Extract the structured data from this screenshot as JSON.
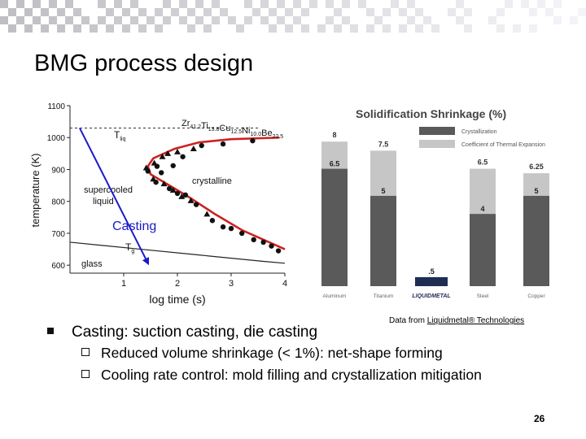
{
  "slide": {
    "title": "BMG process design",
    "page_number": "26",
    "credit_prefix": "Data from ",
    "credit_link": "Liquidmetal® Technologies"
  },
  "bullets": [
    {
      "text": "Casting: suction casting, die casting",
      "sub": [
        "Reduced volume shrinkage (< 1%): net-shape forming",
        "Cooling rate control: mold filling and crystallization mitigation"
      ]
    }
  ],
  "colors": {
    "bar_dark": "#5a5a5a",
    "bar_light": "#c6c6c6",
    "liquidmetal": "#1f2d52",
    "red_curve": "#cc2222",
    "blue_arrow": "#1a1acc"
  },
  "chart_data": [
    {
      "type": "scatter",
      "title": "",
      "xlabel": "log time (s)",
      "ylabel": "temperature (K)",
      "xlim": [
        0,
        4
      ],
      "ylim": [
        575,
        1100
      ],
      "x_ticks": [
        "1",
        "2",
        "3",
        "4"
      ],
      "y_ticks": [
        "600",
        "700",
        "800",
        "900",
        "1000",
        "1100"
      ],
      "alloy_label": "Zr41.2Ti13.8Cu12.5Ni10.0Be22.5",
      "alloy_parts": [
        {
          "t": "Zr",
          "s": "41.2"
        },
        {
          "t": "Ti",
          "s": "13.8"
        },
        {
          "t": "Cu",
          "s": "12.5"
        },
        {
          "t": "Ni",
          "s": "10.0"
        },
        {
          "t": "Be",
          "s": "22.5"
        }
      ],
      "tliq": {
        "label": "T",
        "sub": "liq",
        "value": 1030
      },
      "tg": {
        "label": "T",
        "sub": "g",
        "value": 640
      },
      "region_labels": {
        "supercooled": "supercooled",
        "liquid": "liquid",
        "crystalline": "crystalline",
        "glass": "glass"
      },
      "annotation": "Casting",
      "series": [
        {
          "name": "upper",
          "marker": "triangle",
          "points": [
            [
              1.42,
              905
            ],
            [
              1.57,
              920
            ],
            [
              1.72,
              940
            ],
            [
              1.82,
              950
            ],
            [
              2.0,
              955
            ],
            [
              2.3,
              965
            ]
          ]
        },
        {
          "name": "upper",
          "marker": "circle",
          "points": [
            [
              1.45,
              895
            ],
            [
              1.62,
              910
            ],
            [
              1.7,
              890
            ],
            [
              1.92,
              912
            ],
            [
              2.1,
              940
            ],
            [
              2.45,
              975
            ],
            [
              2.85,
              980
            ],
            [
              3.4,
              990
            ]
          ]
        },
        {
          "name": "lower",
          "marker": "triangle",
          "points": [
            [
              1.55,
              870
            ],
            [
              1.75,
              855
            ],
            [
              1.92,
              835
            ],
            [
              2.08,
              815
            ],
            [
              2.25,
              802
            ],
            [
              2.55,
              760
            ]
          ]
        },
        {
          "name": "lower",
          "marker": "circle",
          "points": [
            [
              1.6,
              860
            ],
            [
              1.85,
              840
            ],
            [
              2.0,
              825
            ],
            [
              2.15,
              820
            ],
            [
              2.35,
              790
            ],
            [
              2.65,
              740
            ],
            [
              2.85,
              720
            ],
            [
              3.0,
              715
            ],
            [
              3.2,
              700
            ],
            [
              3.42,
              680
            ],
            [
              3.6,
              672
            ],
            [
              3.75,
              660
            ],
            [
              3.88,
              645
            ]
          ]
        }
      ],
      "red_curve": [
        [
          3.9,
          1000
        ],
        [
          3.0,
          995
        ],
        [
          2.4,
          985
        ],
        [
          1.95,
          965
        ],
        [
          1.55,
          935
        ],
        [
          1.45,
          910
        ],
        [
          1.5,
          885
        ],
        [
          1.8,
          855
        ],
        [
          2.2,
          815
        ],
        [
          2.7,
          760
        ],
        [
          3.2,
          710
        ],
        [
          3.6,
          680
        ],
        [
          4.0,
          650
        ]
      ],
      "critical_line": [
        [
          0,
          672
        ],
        [
          1.2,
          652
        ],
        [
          2.4,
          632
        ],
        [
          3.6,
          612
        ],
        [
          4.0,
          606
        ]
      ],
      "casting_arrow": {
        "from": [
          0.18,
          1030
        ],
        "to": [
          1.47,
          600
        ]
      }
    },
    {
      "type": "bar",
      "title": "Solidification Shrinkage (%)",
      "legend": [
        "Crystallization",
        "Coefficient of Thermal Expansion"
      ],
      "categories": [
        "Aluminum",
        "Titanium",
        "LIQUIDMETAL",
        "Steel",
        "Copper"
      ],
      "series": [
        {
          "name": "Crystallization",
          "values": [
            6.5,
            5,
            0.5,
            4,
            5
          ]
        },
        {
          "name": "Coefficient of Thermal Expansion",
          "values": [
            1.5,
            2.5,
            0,
            2.5,
            1.25
          ]
        }
      ],
      "top_labels": [
        "8",
        "7.5",
        "",
        "6.5",
        "6.25"
      ],
      "inner_labels": [
        "6.5",
        "5",
        ".5",
        "4",
        "5"
      ],
      "ylim": [
        0,
        9
      ]
    }
  ]
}
